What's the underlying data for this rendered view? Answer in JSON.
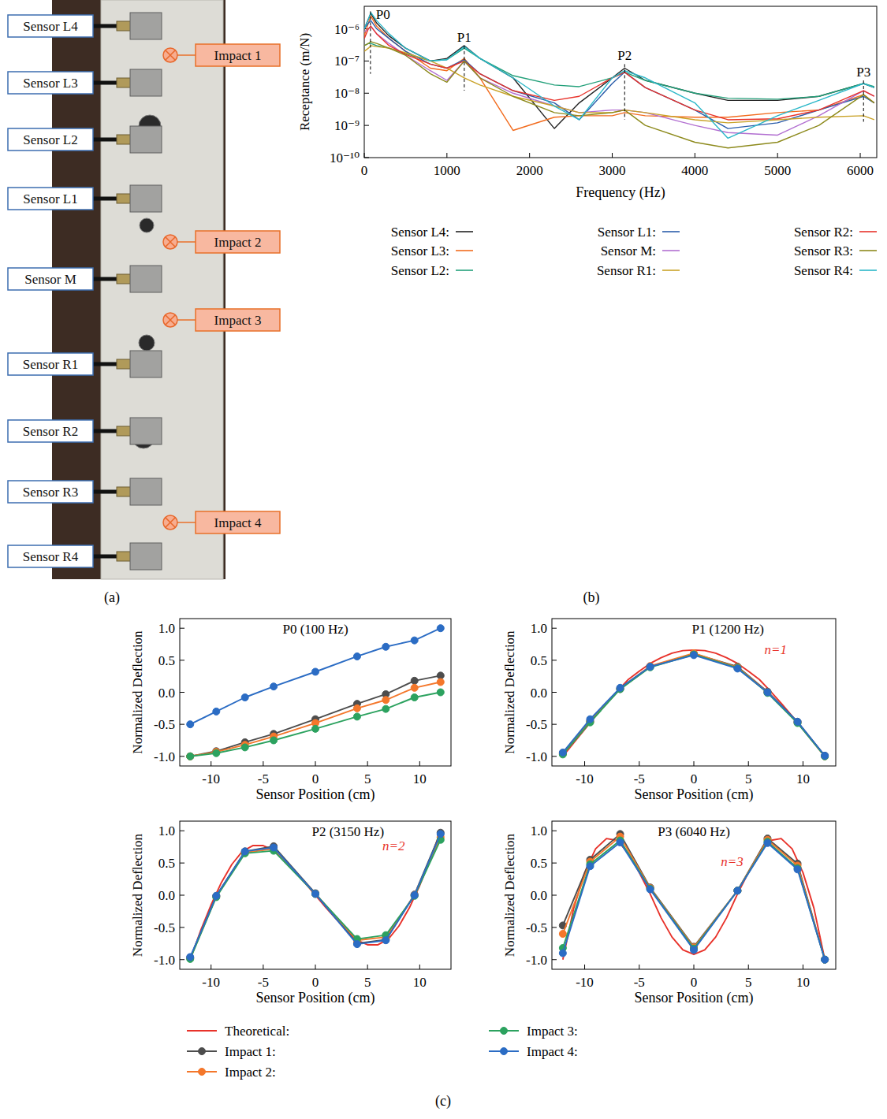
{
  "panel_labels": [
    "(a)",
    "(b)",
    "(c)"
  ],
  "photo": {
    "sensor_labels": [
      "Sensor L4",
      "Sensor L3",
      "Sensor L2",
      "Sensor L1",
      "Sensor M",
      "Sensor R1",
      "Sensor R2",
      "Sensor R3",
      "Sensor R4"
    ],
    "impact_labels": [
      "Impact 1",
      "Impact 2",
      "Impact 3",
      "Impact 4"
    ]
  },
  "chart_data": [
    {
      "type": "line",
      "log": "y",
      "grid": false,
      "legend": "bottom",
      "x_label": "Frequency (Hz)",
      "y_label": "Receptance (m/N)",
      "xlim": [
        0,
        6200
      ],
      "ylim": [
        1e-10,
        5e-06
      ],
      "xticks": [
        0,
        1000,
        2000,
        3000,
        4000,
        5000,
        6000
      ],
      "yticks": [
        {
          "value": 1e-10,
          "label": "10⁻¹⁰"
        },
        {
          "value": 1e-09,
          "label": "10⁻⁹"
        },
        {
          "value": 1e-08,
          "label": "10⁻⁸"
        },
        {
          "value": 1e-07,
          "label": "10⁻⁷"
        },
        {
          "value": 1e-06,
          "label": "10⁻⁶"
        }
      ],
      "x": [
        0,
        50,
        80,
        150,
        300,
        500,
        800,
        1000,
        1210,
        1400,
        1800,
        2300,
        2600,
        3000,
        3150,
        3400,
        4000,
        4400,
        5000,
        5500,
        6040,
        6170
      ],
      "series": [
        {
          "name": "Sensor L4:",
          "color": "#222222",
          "values": [
            1e-06,
            2e-06,
            3e-06,
            1.5e-06,
            6e-07,
            2.5e-07,
            1e-07,
            1.2e-07,
            3e-07,
            1.2e-07,
            3e-08,
            8e-10,
            5e-09,
            3e-08,
            6e-08,
            2.5e-08,
            1e-08,
            6e-09,
            6e-09,
            8e-09,
            2e-08,
            1.5e-08
          ]
        },
        {
          "name": "Sensor L3:",
          "color": "#f26b1d",
          "values": [
            6e-07,
            1.5e-06,
            2.5e-06,
            1.2e-06,
            5e-07,
            2e-07,
            6e-08,
            5e-08,
            1.2e-07,
            3e-08,
            7e-10,
            1.8e-09,
            2e-09,
            2e-09,
            2.5e-09,
            2e-09,
            1.8e-09,
            1.8e-09,
            2.5e-09,
            3e-09,
            9e-09,
            5e-09
          ]
        },
        {
          "name": "Sensor L2:",
          "color": "#23a07a",
          "values": [
            3e-07,
            3.5e-07,
            3.5e-07,
            3e-07,
            2.5e-07,
            1.7e-07,
            1e-07,
            1.1e-07,
            2.5e-07,
            1.2e-07,
            3.5e-08,
            1.8e-08,
            1.6e-08,
            3e-08,
            4.5e-08,
            2.5e-08,
            1e-08,
            7e-09,
            6.5e-09,
            8e-09,
            2e-08,
            1.6e-08
          ]
        },
        {
          "name": "Sensor L1:",
          "color": "#2a5caa",
          "values": [
            1e-06,
            1.5e-06,
            1.8e-06,
            1e-06,
            5e-07,
            2e-07,
            8e-08,
            6e-08,
            1.1e-07,
            4e-08,
            1.2e-08,
            5e-09,
            1.5e-09,
            2e-08,
            4.5e-08,
            1.5e-08,
            3e-09,
            8e-10,
            1.2e-09,
            3e-09,
            8e-09,
            5e-09
          ]
        },
        {
          "name": "Sensor M:",
          "color": "#b26fd1",
          "values": [
            8e-07,
            1e-06,
            1.2e-06,
            7e-07,
            3.5e-07,
            1.5e-07,
            5e-08,
            2.5e-08,
            1e-07,
            3e-08,
            1e-08,
            4e-09,
            2.5e-09,
            3e-09,
            3e-09,
            2.5e-09,
            1e-09,
            6e-10,
            5e-10,
            2e-09,
            1.2e-08,
            8e-09
          ]
        },
        {
          "name": "Sensor R1:",
          "color": "#c9a227",
          "values": [
            2e-07,
            2.5e-07,
            3e-07,
            2.8e-07,
            2.5e-07,
            1.8e-07,
            1e-07,
            6e-08,
            3e-08,
            1.8e-08,
            8e-09,
            4e-09,
            2.5e-09,
            2.5e-09,
            3e-09,
            2.5e-09,
            1.5e-09,
            1.2e-09,
            1.5e-09,
            1.8e-09,
            2e-09,
            1.5e-09
          ]
        },
        {
          "name": "Sensor R2:",
          "color": "#e8322a",
          "values": [
            5e-07,
            1e-06,
            1.2e-06,
            7e-07,
            3e-07,
            1.6e-07,
            8e-08,
            6e-08,
            1e-07,
            4e-08,
            1.2e-08,
            6e-09,
            8e-09,
            3e-08,
            4.5e-08,
            1.5e-08,
            3e-09,
            1.5e-09,
            1.6e-09,
            3e-09,
            1.2e-08,
            8e-09
          ]
        },
        {
          "name": "Sensor R3:",
          "color": "#8d8a1c",
          "values": [
            3e-07,
            3.5e-07,
            4e-07,
            3.5e-07,
            2.5e-07,
            1.5e-07,
            4e-08,
            2.2e-08,
            1e-07,
            3e-08,
            8e-09,
            2.5e-09,
            2e-09,
            2.5e-09,
            3e-09,
            1e-09,
            3e-10,
            2e-10,
            3e-10,
            1e-09,
            9e-09,
            5e-09
          ]
        },
        {
          "name": "Sensor R4:",
          "color": "#2ab7c8",
          "values": [
            1e-06,
            2e-06,
            3.2e-06,
            1.8e-06,
            7e-07,
            2.5e-07,
            1e-07,
            1.1e-07,
            2.8e-07,
            1.2e-07,
            3e-08,
            4e-09,
            1.5e-09,
            3e-08,
            5e-08,
            3e-08,
            5e-09,
            4e-10,
            2e-09,
            6e-09,
            2e-08,
            1.5e-08
          ]
        }
      ],
      "annotations": [
        {
          "text": "P0",
          "x": 75,
          "y_top": 3.5e-06,
          "y_bottom": 4e-08
        },
        {
          "text": "P1",
          "x": 1210,
          "y_top": 3e-07,
          "y_bottom": 1.2e-08
        },
        {
          "text": "P2",
          "x": 3150,
          "y_top": 8e-08,
          "y_bottom": 1.5e-09
        },
        {
          "text": "P3",
          "x": 6040,
          "y_top": 2.5e-08,
          "y_bottom": 1.3e-09
        }
      ]
    },
    {
      "type": "line",
      "grid": false,
      "title": "P0 (100 Hz)",
      "x_label": "Sensor Position (cm)",
      "y_label": "Normalized Deflection",
      "xlim": [
        -13,
        13
      ],
      "ylim": [
        -1.15,
        1.15
      ],
      "xticks": [
        -10,
        -5,
        0,
        5,
        10
      ],
      "yticks": [
        {
          "value": -1,
          "label": "-1.0"
        },
        -0.5,
        {
          "value": 0,
          "label": "0.0"
        },
        0.5,
        {
          "value": 1,
          "label": "1.0"
        }
      ],
      "x": [
        -12,
        -9.5,
        -6.75,
        -4,
        0,
        4,
        6.75,
        9.5,
        12
      ],
      "series": [
        {
          "name": "Impact 1:",
          "color": "#4d4d4d",
          "marker": "circle",
          "line_style": "solid",
          "values": [
            -1.0,
            -0.92,
            -0.78,
            -0.65,
            -0.42,
            -0.18,
            -0.03,
            0.18,
            0.26
          ]
        },
        {
          "name": "Impact 2:",
          "color": "#f4772b",
          "marker": "circle",
          "line_style": "solid",
          "values": [
            -1.0,
            -0.93,
            -0.82,
            -0.69,
            -0.48,
            -0.25,
            -0.12,
            0.07,
            0.16
          ]
        },
        {
          "name": "Impact 3:",
          "color": "#2ca25f",
          "marker": "circle",
          "line_style": "solid",
          "values": [
            -1.0,
            -0.95,
            -0.86,
            -0.75,
            -0.57,
            -0.38,
            -0.26,
            -0.08,
            0.0
          ]
        },
        {
          "name": "Impact 4:",
          "color": "#2b6cc4",
          "marker": "circle",
          "line_style": "solid",
          "values": [
            -0.5,
            -0.3,
            -0.08,
            0.09,
            0.32,
            0.56,
            0.71,
            0.81,
            1.0
          ]
        }
      ]
    },
    {
      "type": "line",
      "grid": false,
      "title": "P1 (1200 Hz)",
      "legend": "bottom",
      "x_label": "Sensor Position (cm)",
      "y_label": "Normalized Deflection",
      "xlim": [
        -13,
        13
      ],
      "ylim": [
        -1.15,
        1.15
      ],
      "xticks": [
        -10,
        -5,
        0,
        5,
        10
      ],
      "yticks": [
        {
          "value": -1,
          "label": "-1.0"
        },
        -0.5,
        {
          "value": 0,
          "label": "0.0"
        },
        0.5,
        {
          "value": 1,
          "label": "1.0"
        }
      ],
      "x": [
        -12,
        -9.5,
        -6.75,
        -4,
        0,
        4,
        6.75,
        9.5,
        12
      ],
      "series": [
        {
          "name": "Theoretical:",
          "color": "#e8322a",
          "line_style": "solid",
          "x": [
            -12,
            -11,
            -10,
            -9,
            -8,
            -7,
            -6,
            -5,
            -4,
            -3,
            -2,
            -1,
            0,
            1,
            2,
            3,
            4,
            5,
            6,
            7,
            8,
            9,
            10,
            11,
            12
          ],
          "values": [
            -1.0,
            -0.79,
            -0.58,
            -0.37,
            -0.17,
            0.02,
            0.2,
            0.33,
            0.45,
            0.54,
            0.61,
            0.65,
            0.66,
            0.65,
            0.61,
            0.54,
            0.45,
            0.33,
            0.2,
            0.02,
            -0.17,
            -0.37,
            -0.58,
            -0.79,
            -1.0
          ]
        },
        {
          "name": "Impact 1:",
          "color": "#4d4d4d",
          "marker": "circle",
          "line_style": "solid",
          "values": [
            -0.95,
            -0.45,
            0.05,
            0.4,
            0.6,
            0.4,
            0.01,
            -0.46,
            -0.99
          ]
        },
        {
          "name": "Impact 2:",
          "color": "#f4772b",
          "marker": "circle",
          "line_style": "solid",
          "values": [
            -0.96,
            -0.46,
            0.06,
            0.41,
            0.61,
            0.39,
            0.0,
            -0.47,
            -1.0
          ]
        },
        {
          "name": "Impact 3:",
          "color": "#2ca25f",
          "marker": "circle",
          "line_style": "solid",
          "values": [
            -0.97,
            -0.47,
            0.05,
            0.39,
            0.59,
            0.38,
            -0.01,
            -0.48,
            -1.0
          ]
        },
        {
          "name": "Impact 4:",
          "color": "#2b6cc4",
          "marker": "circle",
          "line_style": "solid",
          "values": [
            -0.94,
            -0.42,
            0.07,
            0.4,
            0.58,
            0.37,
            0.0,
            -0.46,
            -0.99
          ]
        }
      ],
      "annotations": [
        {
          "text": "n=1",
          "x": 7.5,
          "y": 0.6,
          "color": "#e8322a"
        }
      ]
    },
    {
      "type": "line",
      "grid": false,
      "title": "P2 (3150 Hz)",
      "x_label": "Sensor Position (cm)",
      "y_label": "Normalized Deflection",
      "xlim": [
        -13,
        13
      ],
      "ylim": [
        -1.15,
        1.15
      ],
      "xticks": [
        -10,
        -5,
        0,
        5,
        10
      ],
      "yticks": [
        {
          "value": -1,
          "label": "-1.0"
        },
        -0.5,
        {
          "value": 0,
          "label": "0.0"
        },
        0.5,
        {
          "value": 1,
          "label": "1.0"
        }
      ],
      "x": [
        -12,
        -9.5,
        -6.75,
        -4,
        0,
        4,
        6.75,
        9.5,
        12
      ],
      "series": [
        {
          "name": "Theoretical:",
          "color": "#e8322a",
          "line_style": "solid",
          "x": [
            -12,
            -11,
            -10,
            -9,
            -8,
            -7,
            -6,
            -5,
            -4,
            -3,
            -2,
            -1,
            0,
            1,
            2,
            3,
            4,
            5,
            6,
            7,
            8,
            9,
            10,
            11,
            12
          ],
          "values": [
            -1.0,
            -0.55,
            -0.15,
            0.2,
            0.48,
            0.68,
            0.77,
            0.77,
            0.7,
            0.55,
            0.37,
            0.19,
            0.0,
            -0.19,
            -0.37,
            -0.55,
            -0.7,
            -0.77,
            -0.77,
            -0.68,
            -0.48,
            -0.2,
            0.15,
            0.55,
            1.0
          ]
        },
        {
          "name": "Impact 1:",
          "color": "#4d4d4d",
          "marker": "circle",
          "line_style": "solid",
          "values": [
            -0.97,
            -0.01,
            0.68,
            0.76,
            0.03,
            -0.75,
            -0.69,
            0.01,
            0.97
          ]
        },
        {
          "name": "Impact 2:",
          "color": "#f4772b",
          "marker": "circle",
          "line_style": "solid",
          "values": [
            -0.98,
            -0.02,
            0.66,
            0.72,
            0.02,
            -0.7,
            -0.65,
            0.0,
            0.9
          ]
        },
        {
          "name": "Impact 3:",
          "color": "#2ca25f",
          "marker": "circle",
          "line_style": "solid",
          "values": [
            -0.99,
            -0.03,
            0.65,
            0.69,
            0.02,
            -0.68,
            -0.62,
            -0.01,
            0.86
          ]
        },
        {
          "name": "Impact 4:",
          "color": "#2b6cc4",
          "marker": "circle",
          "line_style": "solid",
          "values": [
            -0.96,
            -0.01,
            0.68,
            0.74,
            0.02,
            -0.76,
            -0.7,
            0.0,
            0.95
          ]
        }
      ],
      "annotations": [
        {
          "text": "n=2",
          "x": 7.5,
          "y": 0.7,
          "color": "#e8322a"
        }
      ]
    },
    {
      "type": "line",
      "grid": false,
      "title": "P3 (6040 Hz)",
      "x_label": "Sensor Position (cm)",
      "y_label": "Normalized Deflection",
      "xlim": [
        -13,
        13
      ],
      "ylim": [
        -1.15,
        1.15
      ],
      "xticks": [
        -10,
        -5,
        0,
        5,
        10
      ],
      "yticks": [
        {
          "value": -1,
          "label": "-1.0"
        },
        -0.5,
        {
          "value": 0,
          "label": "0.0"
        },
        0.5,
        {
          "value": 1,
          "label": "1.0"
        }
      ],
      "x": [
        -12,
        -9.5,
        -6.75,
        -4,
        0,
        4,
        6.75,
        9.5,
        12
      ],
      "series": [
        {
          "name": "Theoretical:",
          "color": "#e8322a",
          "line_style": "solid",
          "x": [
            -12,
            -11,
            -10,
            -9,
            -8,
            -7,
            -6,
            -5,
            -4,
            -3,
            -2,
            -1,
            0,
            1,
            2,
            3,
            4,
            5,
            6,
            7,
            8,
            9,
            10,
            11,
            12
          ],
          "values": [
            -1.0,
            -0.2,
            0.35,
            0.72,
            0.88,
            0.85,
            0.65,
            0.35,
            0.02,
            -0.35,
            -0.65,
            -0.85,
            -0.92,
            -0.85,
            -0.65,
            -0.35,
            0.02,
            0.35,
            0.65,
            0.85,
            0.88,
            0.72,
            0.35,
            -0.2,
            -1.0
          ]
        },
        {
          "name": "Impact 1:",
          "color": "#4d4d4d",
          "marker": "circle",
          "line_style": "solid",
          "values": [
            -0.47,
            0.55,
            0.95,
            0.12,
            -0.8,
            0.07,
            0.88,
            0.49,
            -1.0
          ]
        },
        {
          "name": "Impact 2:",
          "color": "#f4772b",
          "marker": "circle",
          "line_style": "solid",
          "values": [
            -0.6,
            0.52,
            0.91,
            0.11,
            -0.81,
            0.07,
            0.86,
            0.46,
            -1.0
          ]
        },
        {
          "name": "Impact 3:",
          "color": "#2ca25f",
          "marker": "circle",
          "line_style": "solid",
          "values": [
            -0.82,
            0.48,
            0.85,
            0.1,
            -0.83,
            0.07,
            0.83,
            0.42,
            -1.0
          ]
        },
        {
          "name": "Impact 4:",
          "color": "#2b6cc4",
          "marker": "circle",
          "line_style": "solid",
          "values": [
            -0.9,
            0.45,
            0.82,
            0.09,
            -0.85,
            0.07,
            0.81,
            0.4,
            -1.0
          ]
        }
      ],
      "annotations": [
        {
          "text": "n=3",
          "x": 3.5,
          "y": 0.45,
          "color": "#e8322a"
        }
      ]
    }
  ]
}
